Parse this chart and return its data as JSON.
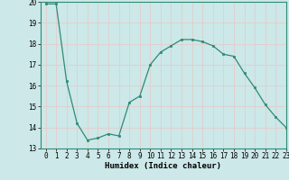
{
  "x": [
    0,
    1,
    2,
    3,
    4,
    5,
    6,
    7,
    8,
    9,
    10,
    11,
    12,
    13,
    14,
    15,
    16,
    17,
    18,
    19,
    20,
    21,
    22,
    23
  ],
  "y": [
    19.9,
    19.9,
    16.2,
    14.2,
    13.4,
    13.5,
    13.7,
    13.6,
    15.2,
    15.5,
    17.0,
    17.6,
    17.9,
    18.2,
    18.2,
    18.1,
    17.9,
    17.5,
    17.4,
    16.6,
    15.9,
    15.1,
    14.5,
    14.0
  ],
  "line_color": "#2e8b74",
  "marker_color": "#2e8b74",
  "bg_color": "#cce8e8",
  "grid_color": "#e8c8c8",
  "xlabel": "Humidex (Indice chaleur)",
  "ylim": [
    13,
    20
  ],
  "xlim": [
    -0.5,
    23
  ],
  "yticks": [
    13,
    14,
    15,
    16,
    17,
    18,
    19,
    20
  ],
  "xticks": [
    0,
    1,
    2,
    3,
    4,
    5,
    6,
    7,
    8,
    9,
    10,
    11,
    12,
    13,
    14,
    15,
    16,
    17,
    18,
    19,
    20,
    21,
    22,
    23
  ],
  "tick_fontsize": 5.5,
  "xlabel_fontsize": 6.5
}
